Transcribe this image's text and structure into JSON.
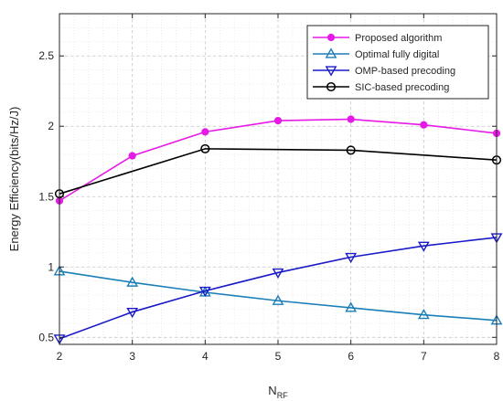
{
  "chart_data": {
    "type": "line",
    "xlabel": "N",
    "xlabel_subscript": "RF",
    "ylabel": "Energy Efficiency(bits/Hz/J)",
    "x": [
      2,
      3,
      4,
      5,
      6,
      7,
      8
    ],
    "xlim": [
      2,
      8
    ],
    "ylim": [
      0.45,
      2.8
    ],
    "x_ticks": [
      "2",
      "3",
      "4",
      "5",
      "6",
      "7",
      "8"
    ],
    "y_ticks": [
      {
        "value": 0.5,
        "label": "0.5"
      },
      {
        "value": 1.0,
        "label": "1"
      },
      {
        "value": 1.5,
        "label": "1.5"
      },
      {
        "value": 2.0,
        "label": "2"
      },
      {
        "value": 2.5,
        "label": "2.5"
      }
    ],
    "grid": true,
    "minor_grid": true,
    "legend_position": "top-right",
    "series": [
      {
        "name": "Proposed algorithm",
        "color": "#e619e6",
        "marker": "filled-circle",
        "values": [
          1.47,
          1.79,
          1.96,
          2.04,
          2.05,
          2.01,
          1.95
        ]
      },
      {
        "name": "Optimal fully digital",
        "color": "#1a7fb8",
        "marker": "triangle-up",
        "values": [
          0.97,
          0.89,
          0.82,
          0.76,
          0.71,
          0.66,
          0.62
        ]
      },
      {
        "name": "OMP-based precoding",
        "color": "#1a1ac8",
        "marker": "triangle-down",
        "values": [
          0.49,
          0.68,
          0.83,
          0.96,
          1.07,
          1.15,
          1.21
        ]
      },
      {
        "name": "SIC-based precoding",
        "color": "#000000",
        "marker": "open-circle",
        "values": [
          1.52,
          null,
          1.84,
          null,
          1.83,
          null,
          1.76
        ]
      }
    ]
  }
}
